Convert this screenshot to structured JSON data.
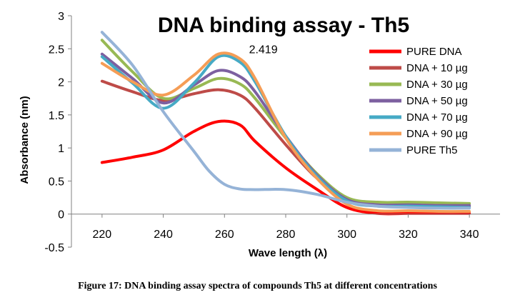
{
  "chart_data": {
    "type": "line",
    "title": "DNA binding assay - Th5",
    "xlabel": "Wave length (λ)",
    "ylabel": "Absorbance (nm)",
    "xlim": [
      210,
      350
    ],
    "ylim": [
      -0.5,
      3
    ],
    "x_ticks": [
      "220",
      "240",
      "260",
      "280",
      "300",
      "320",
      "340"
    ],
    "y_ticks": [
      "-0.5",
      "0",
      "0.5",
      "1",
      "1.5",
      "2",
      "2.5",
      "3"
    ],
    "grid": false,
    "legend_position": "right",
    "annotation": {
      "text": "2.419",
      "x": 268,
      "y": 2.5
    },
    "series": [
      {
        "name": "PURE DNA",
        "color": "#ff0000",
        "x": [
          220,
          230,
          240,
          250,
          258,
          265,
          270,
          280,
          290,
          300,
          310,
          320,
          330,
          340
        ],
        "y": [
          0.78,
          0.86,
          0.97,
          1.25,
          1.4,
          1.35,
          1.1,
          0.7,
          0.38,
          0.1,
          0.01,
          0.01,
          0.01,
          0.01
        ]
      },
      {
        "name": "DNA + 10 µg",
        "color": "#be4b48",
        "x": [
          220,
          230,
          240,
          250,
          258,
          265,
          270,
          280,
          290,
          300,
          310,
          320,
          330,
          340
        ],
        "y": [
          2.01,
          1.85,
          1.72,
          1.82,
          1.88,
          1.8,
          1.6,
          1.05,
          0.55,
          0.22,
          0.13,
          0.13,
          0.12,
          0.12
        ]
      },
      {
        "name": "DNA + 30 µg",
        "color": "#98b954",
        "x": [
          220,
          230,
          240,
          250,
          258,
          265,
          270,
          280,
          290,
          300,
          310,
          320,
          330,
          340
        ],
        "y": [
          2.63,
          2.15,
          1.75,
          1.9,
          2.05,
          1.97,
          1.75,
          1.15,
          0.62,
          0.25,
          0.18,
          0.18,
          0.17,
          0.16
        ]
      },
      {
        "name": "DNA + 50 µg",
        "color": "#7d60a0",
        "x": [
          220,
          230,
          240,
          250,
          258,
          265,
          270,
          280,
          290,
          300,
          310,
          320,
          330,
          340
        ],
        "y": [
          2.42,
          2.05,
          1.68,
          1.95,
          2.17,
          2.08,
          1.85,
          1.18,
          0.6,
          0.22,
          0.14,
          0.14,
          0.13,
          0.13
        ]
      },
      {
        "name": "DNA + 70 µg",
        "color": "#46aac5",
        "x": [
          220,
          230,
          240,
          250,
          258,
          265,
          270,
          280,
          290,
          300,
          310,
          320,
          330,
          340
        ],
        "y": [
          2.38,
          1.98,
          1.6,
          1.98,
          2.38,
          2.3,
          2.0,
          1.18,
          0.58,
          0.2,
          0.12,
          0.12,
          0.11,
          0.1
        ]
      },
      {
        "name": "DNA + 90 µg",
        "color": "#f59d56",
        "x": [
          220,
          230,
          240,
          250,
          258,
          265,
          270,
          280,
          290,
          300,
          310,
          320,
          330,
          340
        ],
        "y": [
          2.28,
          2.0,
          1.8,
          2.1,
          2.42,
          2.35,
          2.05,
          1.15,
          0.55,
          0.15,
          0.05,
          0.05,
          0.04,
          0.04
        ]
      },
      {
        "name": "PURE Th5",
        "color": "#95b3d7",
        "x": [
          220,
          230,
          240,
          250,
          255,
          260,
          265,
          270,
          280,
          290,
          300,
          310,
          320,
          330,
          340
        ],
        "y": [
          2.75,
          2.25,
          1.55,
          0.95,
          0.65,
          0.45,
          0.38,
          0.37,
          0.37,
          0.3,
          0.18,
          0.12,
          0.1,
          0.09,
          0.09
        ]
      }
    ]
  },
  "caption": "Figure 17: DNA binding assay spectra of compounds Th5 at different concentrations"
}
